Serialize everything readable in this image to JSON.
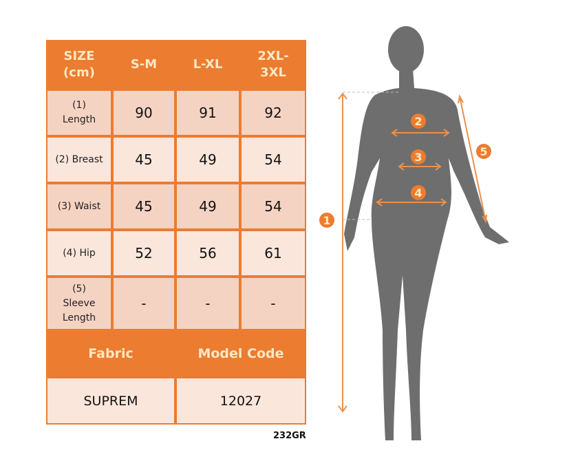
{
  "table": {
    "headers": [
      "SIZE (cm)",
      "S-M",
      "L-XL",
      "2XL-3XL"
    ],
    "rows": [
      {
        "label": "(1) Length",
        "values": [
          "90",
          "91",
          "92"
        ]
      },
      {
        "label": "(2) Breast",
        "values": [
          "45",
          "49",
          "54"
        ]
      },
      {
        "label": "(3) Waist",
        "values": [
          "45",
          "49",
          "54"
        ]
      },
      {
        "label": "(4) Hip",
        "values": [
          "52",
          "56",
          "61"
        ]
      },
      {
        "label": "(5) Sleeve Length",
        "values": [
          "-",
          "-",
          "-"
        ]
      }
    ],
    "fabric_label": "Fabric",
    "model_code_label": "Model Code",
    "fabric_value": "SUPREM",
    "model_code_value": "12027"
  },
  "product_code": "232GR",
  "figure": {
    "markers": [
      "1",
      "2",
      "3",
      "4",
      "5"
    ]
  },
  "colors": {
    "accent": "#ec7c30",
    "header_text": "#fde8c4",
    "cell_dark": "#f5d3c3",
    "cell_light": "#fbe6dc",
    "silhouette": "#6e6e6e"
  }
}
